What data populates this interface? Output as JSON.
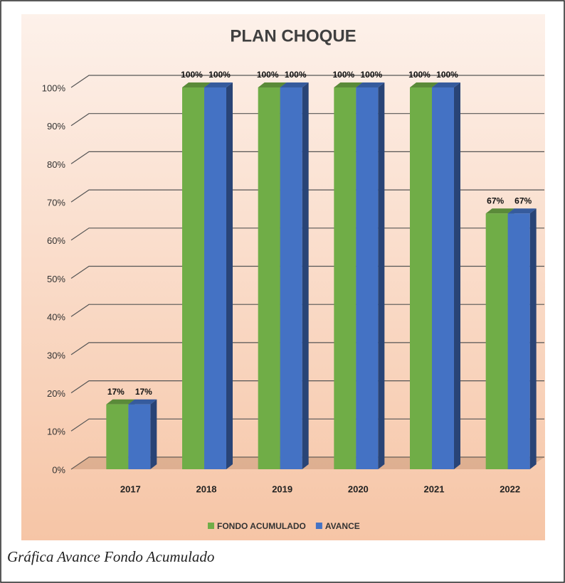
{
  "chart_data": {
    "type": "bar3d",
    "title": "PLAN CHOQUE",
    "categories": [
      "2017",
      "2018",
      "2019",
      "2020",
      "2021",
      "2022"
    ],
    "series": [
      {
        "name": "FONDO ACUMULADO",
        "color": "#70ad47",
        "values": [
          17,
          100,
          100,
          100,
          100,
          67
        ],
        "value_labels": [
          "17%",
          "100%",
          "100%",
          "100%",
          "100%",
          "67%"
        ]
      },
      {
        "name": "AVANCE",
        "color": "#4472c4",
        "values": [
          17,
          100,
          100,
          100,
          100,
          67
        ],
        "value_labels": [
          "17%",
          "100%",
          "100%",
          "100%",
          "100%",
          "67%"
        ]
      }
    ],
    "ylim": [
      0,
      100
    ],
    "yticks": [
      {
        "value": 0,
        "label": "0%"
      },
      {
        "value": 10,
        "label": "10%"
      },
      {
        "value": 20,
        "label": "20%"
      },
      {
        "value": 30,
        "label": "30%"
      },
      {
        "value": 40,
        "label": "40%"
      },
      {
        "value": 50,
        "label": "50%"
      },
      {
        "value": 60,
        "label": "60%"
      },
      {
        "value": 70,
        "label": "70%"
      },
      {
        "value": 80,
        "label": "80%"
      },
      {
        "value": 90,
        "label": "90%"
      },
      {
        "value": 100,
        "label": "100%"
      }
    ],
    "grid": true,
    "legend": "bottom",
    "caption": "Gráfica Avance Fondo Acumulado"
  }
}
